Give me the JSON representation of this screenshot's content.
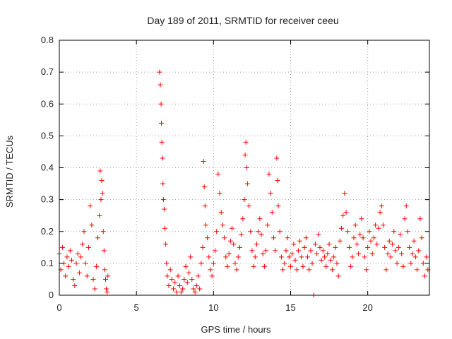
{
  "chart_data": {
    "type": "scatter",
    "title": "Day 189 of 2011, SRMTID for receiver ceeu",
    "xlabel": "GPS time / hours",
    "ylabel": "SRMTID / TECUs",
    "xlim": [
      0,
      24
    ],
    "ylim": [
      0,
      0.8
    ],
    "x_ticks": [
      0,
      5,
      10,
      15,
      20
    ],
    "y_ticks": [
      0,
      0.1,
      0.2,
      0.3,
      0.4,
      0.5,
      0.6,
      0.7,
      0.8
    ],
    "x_tick_labels": [
      "0",
      "5",
      "10",
      "15",
      "20"
    ],
    "y_tick_labels": [
      "0",
      "0.1",
      "0.2",
      "0.3",
      "0.4",
      "0.5",
      "0.6",
      "0.7",
      "0.8"
    ],
    "grid": true,
    "marker": "+",
    "color": "#ff0000",
    "series": [
      {
        "name": "SRMTID",
        "points": [
          [
            0.0,
            0.13
          ],
          [
            0.1,
            0.08
          ],
          [
            0.2,
            0.15
          ],
          [
            0.3,
            0.1
          ],
          [
            0.4,
            0.06
          ],
          [
            0.5,
            0.12
          ],
          [
            0.6,
            0.09
          ],
          [
            0.7,
            0.14
          ],
          [
            0.8,
            0.11
          ],
          [
            0.9,
            0.05
          ],
          [
            1.0,
            0.03
          ],
          [
            1.1,
            0.1
          ],
          [
            1.2,
            0.13
          ],
          [
            1.3,
            0.07
          ],
          [
            1.4,
            0.12
          ],
          [
            1.5,
            0.16
          ],
          [
            1.6,
            0.2
          ],
          [
            1.7,
            0.1
          ],
          [
            1.8,
            0.06
          ],
          [
            1.9,
            0.15
          ],
          [
            2.0,
            0.28
          ],
          [
            2.1,
            0.22
          ],
          [
            2.2,
            0.05
          ],
          [
            2.3,
            0.02
          ],
          [
            2.4,
            0.09
          ],
          [
            2.5,
            0.18
          ],
          [
            2.6,
            0.25
          ],
          [
            2.65,
            0.39
          ],
          [
            2.7,
            0.3
          ],
          [
            2.75,
            0.36
          ],
          [
            2.8,
            0.32
          ],
          [
            2.85,
            0.2
          ],
          [
            2.9,
            0.14
          ],
          [
            2.95,
            0.08
          ],
          [
            3.0,
            0.05
          ],
          [
            3.05,
            0.02
          ],
          [
            3.1,
            0.01
          ],
          [
            3.15,
            0.06
          ],
          [
            6.5,
            0.7
          ],
          [
            6.55,
            0.66
          ],
          [
            6.6,
            0.6
          ],
          [
            6.62,
            0.54
          ],
          [
            6.65,
            0.48
          ],
          [
            6.7,
            0.43
          ],
          [
            6.72,
            0.35
          ],
          [
            6.75,
            0.3
          ],
          [
            6.8,
            0.27
          ],
          [
            6.85,
            0.21
          ],
          [
            6.9,
            0.16
          ],
          [
            6.95,
            0.1
          ],
          [
            7.0,
            0.06
          ],
          [
            7.1,
            0.03
          ],
          [
            7.2,
            0.08
          ],
          [
            7.3,
            0.05
          ],
          [
            7.4,
            0.02
          ],
          [
            7.5,
            0.04
          ],
          [
            7.6,
            0.01
          ],
          [
            7.7,
            0.06
          ],
          [
            7.8,
            0.03
          ],
          [
            7.9,
            0.01
          ],
          [
            8.0,
            0.02
          ],
          [
            8.1,
            0.05
          ],
          [
            8.2,
            0.09
          ],
          [
            8.3,
            0.04
          ],
          [
            8.4,
            0.07
          ],
          [
            8.5,
            0.12
          ],
          [
            8.6,
            0.05
          ],
          [
            8.7,
            0.02
          ],
          [
            8.8,
            0.01
          ],
          [
            8.9,
            0.03
          ],
          [
            9.0,
            0.06
          ],
          [
            9.1,
            0.02
          ],
          [
            9.2,
            0.1
          ],
          [
            9.3,
            0.15
          ],
          [
            9.35,
            0.42
          ],
          [
            9.4,
            0.34
          ],
          [
            9.45,
            0.28
          ],
          [
            9.5,
            0.22
          ],
          [
            9.6,
            0.18
          ],
          [
            9.7,
            0.12
          ],
          [
            9.8,
            0.08
          ],
          [
            9.9,
            0.06
          ],
          [
            10.0,
            0.1
          ],
          [
            10.1,
            0.14
          ],
          [
            10.2,
            0.2
          ],
          [
            10.3,
            0.38
          ],
          [
            10.4,
            0.32
          ],
          [
            10.5,
            0.26
          ],
          [
            10.6,
            0.22
          ],
          [
            10.7,
            0.18
          ],
          [
            10.8,
            0.12
          ],
          [
            10.9,
            0.09
          ],
          [
            11.0,
            0.13
          ],
          [
            11.1,
            0.17
          ],
          [
            11.2,
            0.21
          ],
          [
            11.3,
            0.16
          ],
          [
            11.4,
            0.1
          ],
          [
            11.5,
            0.08
          ],
          [
            11.6,
            0.12
          ],
          [
            11.7,
            0.15
          ],
          [
            11.8,
            0.19
          ],
          [
            11.9,
            0.24
          ],
          [
            12.0,
            0.3
          ],
          [
            12.05,
            0.44
          ],
          [
            12.1,
            0.48
          ],
          [
            12.15,
            0.4
          ],
          [
            12.2,
            0.35
          ],
          [
            12.3,
            0.28
          ],
          [
            12.4,
            0.2
          ],
          [
            12.5,
            0.14
          ],
          [
            12.6,
            0.09
          ],
          [
            12.7,
            0.12
          ],
          [
            12.8,
            0.16
          ],
          [
            12.9,
            0.2
          ],
          [
            13.0,
            0.24
          ],
          [
            13.1,
            0.19
          ],
          [
            13.2,
            0.13
          ],
          [
            13.3,
            0.09
          ],
          [
            13.4,
            0.14
          ],
          [
            13.5,
            0.22
          ],
          [
            13.6,
            0.38
          ],
          [
            13.7,
            0.32
          ],
          [
            13.8,
            0.26
          ],
          [
            13.9,
            0.18
          ],
          [
            14.0,
            0.14
          ],
          [
            14.1,
            0.43
          ],
          [
            14.15,
            0.36
          ],
          [
            14.2,
            0.28
          ],
          [
            14.3,
            0.2
          ],
          [
            14.4,
            0.12
          ],
          [
            14.5,
            0.08
          ],
          [
            14.6,
            0.1
          ],
          [
            14.7,
            0.14
          ],
          [
            14.8,
            0.18
          ],
          [
            14.9,
            0.12
          ],
          [
            15.0,
            0.09
          ],
          [
            15.1,
            0.13
          ],
          [
            15.2,
            0.16
          ],
          [
            15.3,
            0.11
          ],
          [
            15.4,
            0.08
          ],
          [
            15.5,
            0.14
          ],
          [
            15.6,
            0.17
          ],
          [
            15.7,
            0.12
          ],
          [
            15.8,
            0.09
          ],
          [
            15.9,
            0.15
          ],
          [
            16.0,
            0.18
          ],
          [
            16.1,
            0.12
          ],
          [
            16.2,
            0.08
          ],
          [
            16.3,
            0.14
          ],
          [
            16.4,
            0.1
          ],
          [
            16.5,
            0.0
          ],
          [
            16.6,
            0.16
          ],
          [
            16.7,
            0.13
          ],
          [
            16.8,
            0.19
          ],
          [
            16.9,
            0.15
          ],
          [
            17.0,
            0.11
          ],
          [
            17.1,
            0.14
          ],
          [
            17.2,
            0.12
          ],
          [
            17.3,
            0.09
          ],
          [
            17.4,
            0.13
          ],
          [
            17.5,
            0.16
          ],
          [
            17.6,
            0.11
          ],
          [
            17.7,
            0.08
          ],
          [
            17.8,
            0.12
          ],
          [
            17.9,
            0.15
          ],
          [
            18.0,
            0.1
          ],
          [
            18.1,
            0.06
          ],
          [
            18.2,
            0.17
          ],
          [
            18.3,
            0.21
          ],
          [
            18.4,
            0.25
          ],
          [
            18.5,
            0.32
          ],
          [
            18.6,
            0.26
          ],
          [
            18.7,
            0.2
          ],
          [
            18.8,
            0.15
          ],
          [
            18.9,
            0.09
          ],
          [
            19.0,
            0.12
          ],
          [
            19.1,
            0.18
          ],
          [
            19.2,
            0.22
          ],
          [
            19.3,
            0.16
          ],
          [
            19.4,
            0.13
          ],
          [
            19.5,
            0.19
          ],
          [
            19.6,
            0.24
          ],
          [
            19.7,
            0.18
          ],
          [
            19.8,
            0.12
          ],
          [
            19.9,
            0.08
          ],
          [
            20.0,
            0.15
          ],
          [
            20.1,
            0.2
          ],
          [
            20.2,
            0.17
          ],
          [
            20.3,
            0.13
          ],
          [
            20.4,
            0.18
          ],
          [
            20.5,
            0.22
          ],
          [
            20.6,
            0.16
          ],
          [
            20.7,
            0.21
          ],
          [
            20.8,
            0.26
          ],
          [
            20.9,
            0.28
          ],
          [
            21.0,
            0.22
          ],
          [
            21.1,
            0.15
          ],
          [
            21.2,
            0.08
          ],
          [
            21.3,
            0.13
          ],
          [
            21.4,
            0.17
          ],
          [
            21.5,
            0.12
          ],
          [
            21.6,
            0.16
          ],
          [
            21.7,
            0.2
          ],
          [
            21.8,
            0.14
          ],
          [
            21.9,
            0.1
          ],
          [
            22.0,
            0.15
          ],
          [
            22.1,
            0.19
          ],
          [
            22.2,
            0.13
          ],
          [
            22.3,
            0.09
          ],
          [
            22.4,
            0.24
          ],
          [
            22.5,
            0.28
          ],
          [
            22.6,
            0.2
          ],
          [
            22.7,
            0.15
          ],
          [
            22.8,
            0.1
          ],
          [
            22.9,
            0.13
          ],
          [
            23.0,
            0.17
          ],
          [
            23.1,
            0.12
          ],
          [
            23.2,
            0.08
          ],
          [
            23.3,
            0.14
          ],
          [
            23.4,
            0.24
          ],
          [
            23.5,
            0.18
          ],
          [
            23.6,
            0.1
          ],
          [
            23.7,
            0.06
          ],
          [
            23.8,
            0.12
          ],
          [
            23.9,
            0.08
          ]
        ]
      }
    ]
  }
}
